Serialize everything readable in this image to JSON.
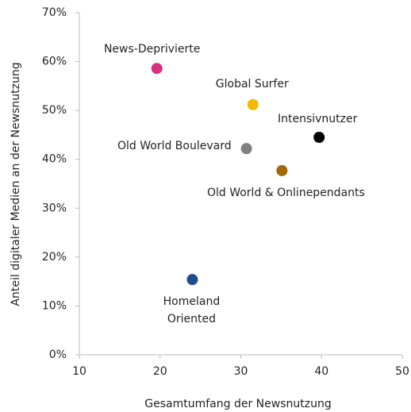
{
  "chart_data": {
    "type": "scatter",
    "xlabel": "Gesamtumfang der Newsnutzung",
    "ylabel": "Anteil digitaler Medien an der Newsnutzung",
    "xlim": [
      10,
      50
    ],
    "xticks": [
      10,
      20,
      30,
      40,
      50
    ],
    "ylim": [
      0,
      70
    ],
    "yticks": [
      {
        "value": 0,
        "label": "0%"
      },
      {
        "value": 10,
        "label": "10%"
      },
      {
        "value": 20,
        "label": "20%"
      },
      {
        "value": 30,
        "label": "30%"
      },
      {
        "value": 40,
        "label": "40%"
      },
      {
        "value": 50,
        "label": "50%"
      },
      {
        "value": 60,
        "label": "60%"
      },
      {
        "value": 70,
        "label": "70%"
      }
    ],
    "grid": false,
    "points": [
      {
        "label": "News-Deprivierte",
        "x": 19.6,
        "y": 58.6,
        "color": "#d6307f"
      },
      {
        "label": "Global Surfer",
        "x": 31.5,
        "y": 51.2,
        "color": "#f5b700"
      },
      {
        "label": "Intensivnutzer",
        "x": 39.7,
        "y": 44.5,
        "color": "#000000"
      },
      {
        "label": "Old World Boulevard",
        "x": 30.7,
        "y": 42.2,
        "color": "#808080"
      },
      {
        "label": "Old World & Onlinependants",
        "x": 35.1,
        "y": 37.7,
        "color": "#a0680a"
      },
      {
        "label": "Homeland\nOriented",
        "x": 24.0,
        "y": 15.4,
        "color": "#1f4e8c"
      }
    ]
  }
}
